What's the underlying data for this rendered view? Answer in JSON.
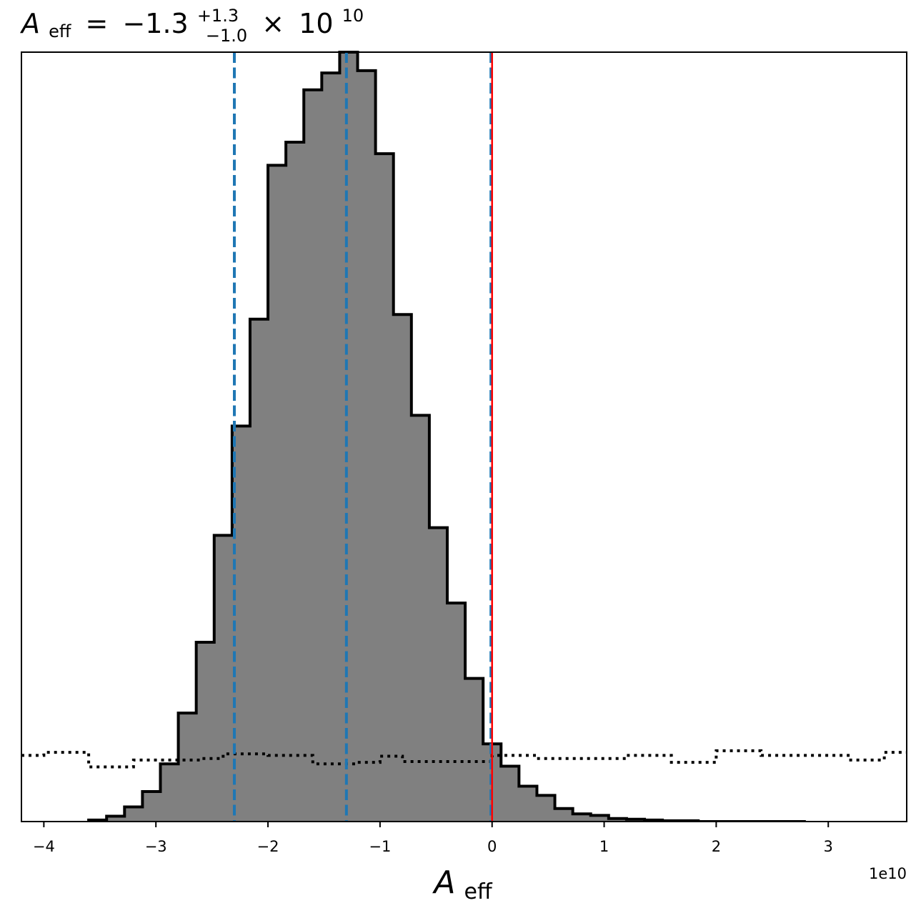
{
  "chart_data": {
    "type": "histogram",
    "title": {
      "symbol": "A",
      "subscript": "eff",
      "relation": "=",
      "median": "−1.3",
      "upper": "+1.3",
      "lower": "−1.0",
      "times": "×",
      "base": "10",
      "exponent": "10"
    },
    "xlabel": {
      "symbol": "A",
      "subscript": "eff"
    },
    "offset_text": "1e10",
    "x_scale": 10000000000.0,
    "xlim": [
      -4.2,
      3.7
    ],
    "ylim": [
      0,
      1.0
    ],
    "xticks": [
      -4,
      -3,
      -2,
      -1,
      0,
      1,
      2,
      3
    ],
    "xtick_labels": [
      "−4",
      "−3",
      "−2",
      "−1",
      "0",
      "1",
      "2",
      "3"
    ],
    "y_axis_visible": false,
    "grid": false,
    "colors": {
      "hist_fill": "#808080",
      "hist_edge": "#000000",
      "quantile_lines": "#1f77b4",
      "truth_line": "#ff0000",
      "prior": "#000000"
    },
    "series": [
      {
        "kind": "posterior",
        "style": "filled-step",
        "bin_edges": [
          -3.6,
          -3.44,
          -3.28,
          -3.12,
          -2.96,
          -2.8,
          -2.64,
          -2.48,
          -2.32,
          -2.16,
          -2.0,
          -1.84,
          -1.68,
          -1.52,
          -1.36,
          -1.2,
          -1.04,
          -0.88,
          -0.72,
          -0.56,
          -0.4,
          -0.24,
          -0.08,
          0.08,
          0.24,
          0.4,
          0.56,
          0.72,
          0.88,
          1.04,
          1.2,
          1.36,
          1.52,
          1.68,
          1.84,
          2.0,
          2.16,
          2.32,
          2.48,
          2.64,
          2.8
        ],
        "heights": [
          0.002,
          0.007,
          0.019,
          0.039,
          0.075,
          0.141,
          0.233,
          0.372,
          0.514,
          0.653,
          0.853,
          0.883,
          0.951,
          0.973,
          1.0,
          0.976,
          0.868,
          0.659,
          0.528,
          0.382,
          0.284,
          0.186,
          0.101,
          0.072,
          0.046,
          0.034,
          0.017,
          0.01,
          0.008,
          0.004,
          0.003,
          0.002,
          0.001,
          0.001,
          0.0,
          0.0,
          0.0,
          0.0,
          0.0,
          0.0
        ]
      },
      {
        "kind": "prior",
        "style": "dotted-step",
        "bin_edges": [
          -4.2,
          -4.0,
          -3.6,
          -3.2,
          -3.0,
          -2.6,
          -2.4,
          -2.0,
          -1.6,
          -1.2,
          -1.0,
          -0.8,
          -0.4,
          0.0,
          0.4,
          0.8,
          1.2,
          1.6,
          2.0,
          2.4,
          2.8,
          3.2,
          3.5,
          3.7
        ],
        "heights": [
          0.086,
          0.09,
          0.071,
          0.08,
          0.08,
          0.082,
          0.088,
          0.086,
          0.075,
          0.077,
          0.085,
          0.078,
          0.078,
          0.086,
          0.082,
          0.082,
          0.086,
          0.077,
          0.092,
          0.086,
          0.086,
          0.08,
          0.09
        ]
      }
    ],
    "vlines": [
      {
        "role": "quantile-16",
        "x": -2.3,
        "style": "dashed"
      },
      {
        "role": "median",
        "x": -1.3,
        "style": "dashed"
      },
      {
        "role": "quantile-84",
        "x": -0.01,
        "style": "dashed"
      },
      {
        "role": "truth",
        "x": 0.0,
        "style": "solid"
      }
    ]
  }
}
